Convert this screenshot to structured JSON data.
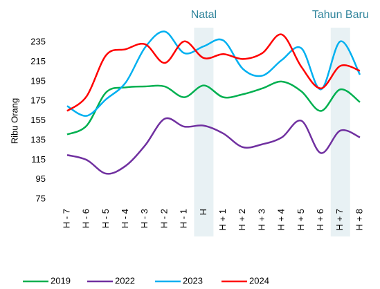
{
  "chart_data": {
    "type": "line",
    "y_label": "Ribu Orang",
    "categories": [
      "H - 7",
      "H - 6",
      "H - 5",
      "H - 4",
      "H - 3",
      "H - 2",
      "H - 1",
      "H",
      "H + 1",
      "H + 2",
      "H + 3",
      "H + 4",
      "H + 5",
      "H + 6",
      "H + 7",
      "H + 8"
    ],
    "series": [
      {
        "name": "2019",
        "color": "#00b050",
        "values": [
          141,
          150,
          184,
          189,
          190,
          190,
          179,
          191,
          179,
          182,
          188,
          195,
          185,
          165,
          187,
          174
        ]
      },
      {
        "name": "2022",
        "color": "#7030a0",
        "values": [
          120,
          115,
          101,
          109,
          130,
          157,
          149,
          150,
          142,
          128,
          131,
          138,
          155,
          122,
          145,
          138
        ]
      },
      {
        "name": "2023",
        "color": "#00b0f0",
        "values": [
          170,
          160,
          177,
          194,
          230,
          246,
          224,
          231,
          237,
          208,
          201,
          217,
          229,
          187,
          236,
          202
        ]
      },
      {
        "name": "2024",
        "color": "#ff0000",
        "values": [
          165,
          180,
          222,
          228,
          233,
          214,
          236,
          219,
          223,
          218,
          224,
          243,
          210,
          188,
          211,
          206
        ]
      }
    ],
    "annotations": [
      {
        "text": "Natal",
        "x": "H"
      },
      {
        "text": "Tahun Baru",
        "x": "H + 7"
      }
    ],
    "ylim": [
      75,
      250
    ],
    "yticks": [
      75,
      95,
      115,
      135,
      155,
      175,
      195,
      215,
      235
    ],
    "grid": false,
    "legend": "bottom"
  }
}
